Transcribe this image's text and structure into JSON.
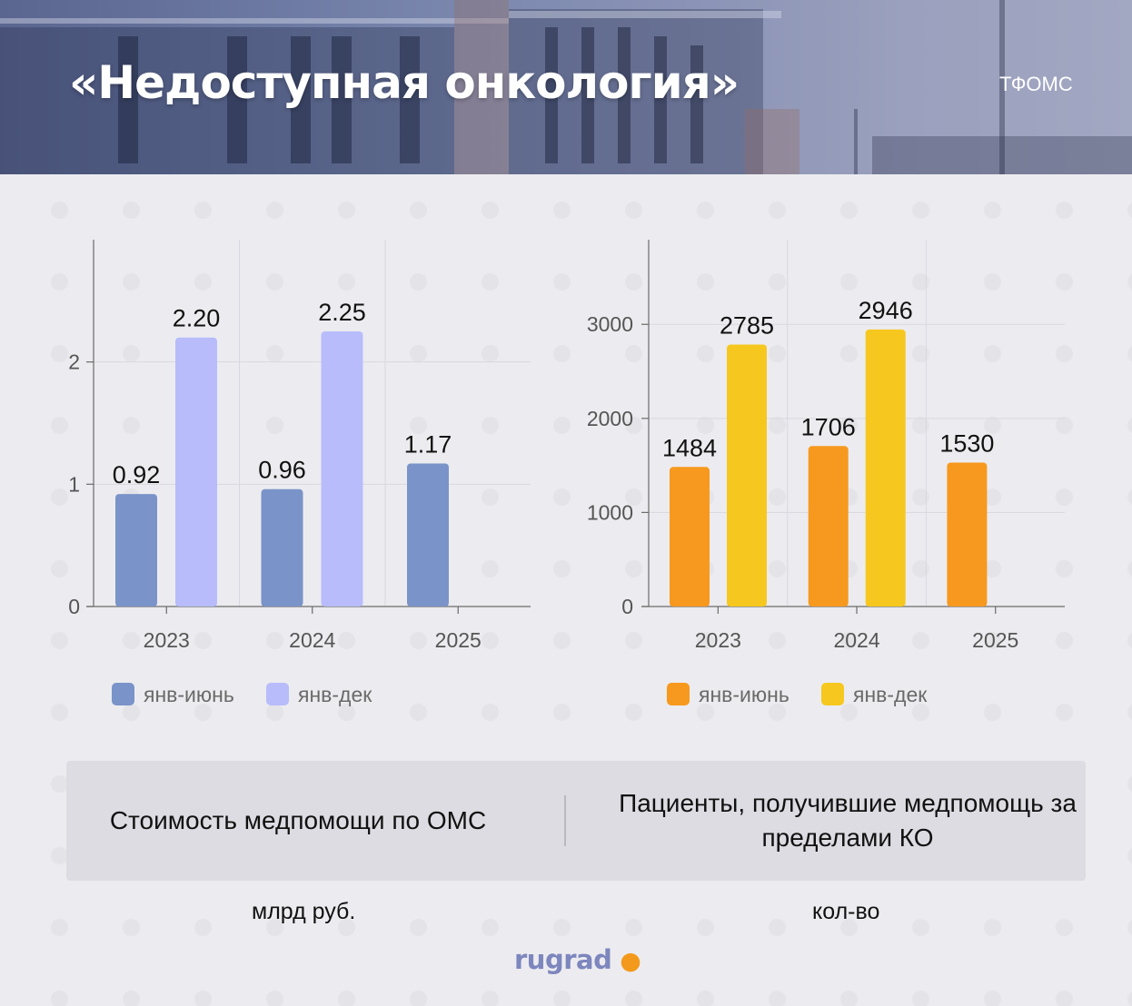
{
  "header": {
    "title": "«Недоступная онкология»",
    "source": "ТФОМС"
  },
  "chart_data": [
    {
      "type": "bar",
      "categories": [
        "2023",
        "2024",
        "2025"
      ],
      "series": [
        {
          "name": "янв-июнь",
          "values": [
            0.92,
            0.96,
            1.17
          ],
          "labels": [
            "0.92",
            "0.96",
            "1.17"
          ],
          "color": "#7a93c9"
        },
        {
          "name": "янв-дек",
          "values": [
            2.2,
            2.25,
            null
          ],
          "labels": [
            "2.20",
            "2.25",
            ""
          ],
          "color": "#b8bcfb"
        }
      ],
      "yticks": [
        "0",
        "1",
        "2"
      ],
      "ylim": [
        0,
        3
      ],
      "grid": true,
      "legend_position": "bottom",
      "title": "Стоимость медпомощи по ОМС",
      "unit": "млрд руб."
    },
    {
      "type": "bar",
      "categories": [
        "2023",
        "2024",
        "2025"
      ],
      "series": [
        {
          "name": "янв-июнь",
          "values": [
            1484,
            1706,
            1530
          ],
          "labels": [
            "1484",
            "1706",
            "1530"
          ],
          "color": "#f7991e"
        },
        {
          "name": "янв-дек",
          "values": [
            2785,
            2946,
            null
          ],
          "labels": [
            "2785",
            "2946",
            ""
          ],
          "color": "#f6c81f"
        }
      ],
      "yticks": [
        "0",
        "1000",
        "2000",
        "3000"
      ],
      "ylim": [
        0,
        3900
      ],
      "grid": true,
      "legend_position": "bottom",
      "title": "Пациенты, получившие медпомощь за пределами КО",
      "unit": "кол-во"
    }
  ],
  "panel": {
    "left_text": "Стоимость медпомощи по ОМС",
    "right_text": "Пациенты, получившие медпомощь за пределами КО"
  },
  "units": {
    "left": "млрд руб.",
    "right": "кол-во"
  },
  "logo": {
    "text": "rugrad",
    "accent_color": "#f39a1c"
  }
}
